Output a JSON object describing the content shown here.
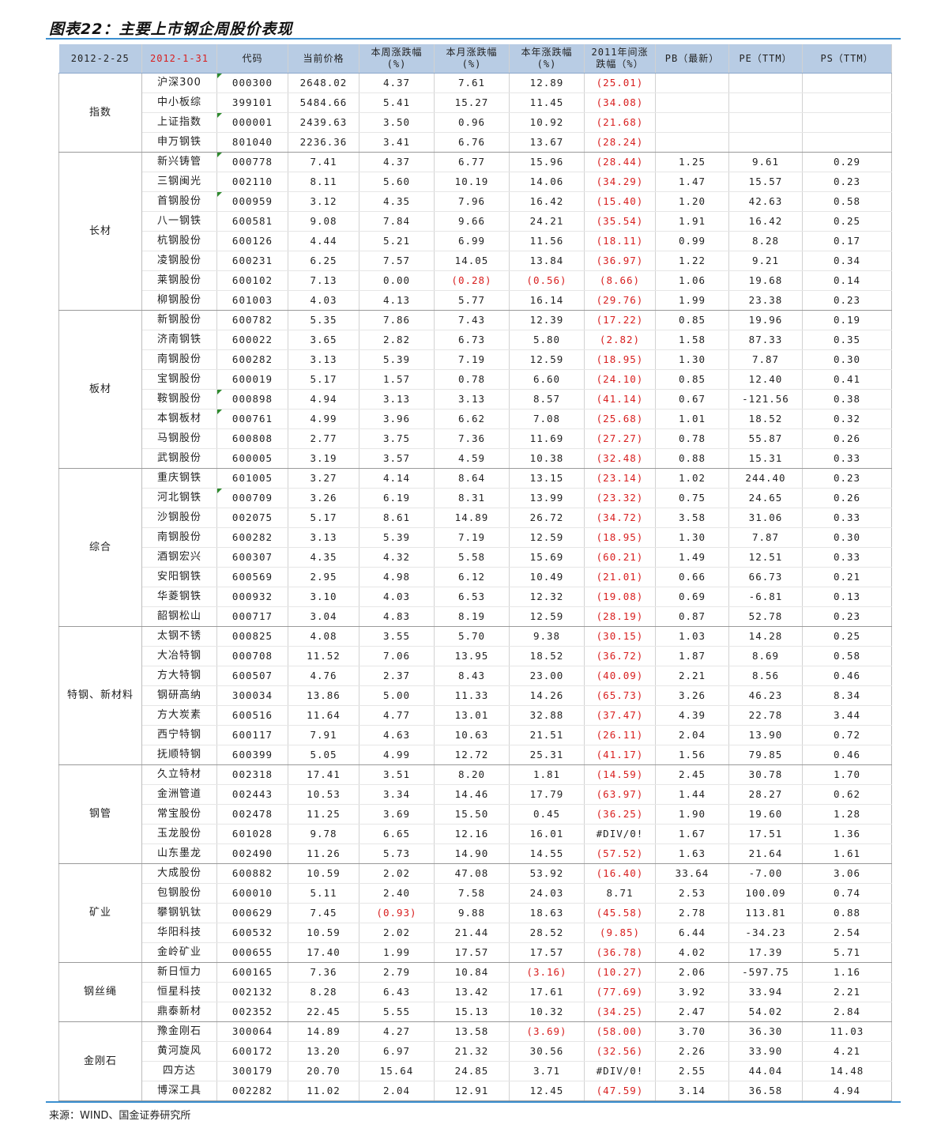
{
  "title": "图表22：主要上市钢企周股价表现",
  "source": "来源：WIND、国金证券研究所",
  "header": {
    "date1": "2012-2-25",
    "date2": "2012-1-31",
    "code": "代码",
    "price": "当前价格",
    "week": "本周涨跌幅\n(%)",
    "month": "本月涨跌幅\n(%)",
    "year": "本年涨跌幅\n(%)",
    "y2011": "2011年间涨\n跌幅（%）",
    "pb": "PB（最新）",
    "pe": "PE（TTM）",
    "ps": "PS（TTM）"
  },
  "groups": [
    {
      "name": "指数",
      "rows": [
        {
          "name": "沪深300",
          "code": "000300",
          "flag": true,
          "price": "2648.02",
          "week": "4.37",
          "month": "7.61",
          "year": "12.89",
          "y2011": "(25.01)",
          "pb": "",
          "pe": "",
          "ps": ""
        },
        {
          "name": "中小板综",
          "code": "399101",
          "flag": false,
          "price": "5484.66",
          "week": "5.41",
          "month": "15.27",
          "year": "11.45",
          "y2011": "(34.08)",
          "pb": "",
          "pe": "",
          "ps": ""
        },
        {
          "name": "上证指数",
          "code": "000001",
          "flag": true,
          "price": "2439.63",
          "week": "3.50",
          "month": "0.96",
          "year": "10.92",
          "y2011": "(21.68)",
          "pb": "",
          "pe": "",
          "ps": ""
        },
        {
          "name": "申万钢铁",
          "code": "801040",
          "flag": false,
          "price": "2236.36",
          "week": "3.41",
          "month": "6.76",
          "year": "13.67",
          "y2011": "(28.24)",
          "pb": "",
          "pe": "",
          "ps": ""
        }
      ]
    },
    {
      "name": "长材",
      "rows": [
        {
          "name": "新兴铸管",
          "code": "000778",
          "flag": true,
          "price": "7.41",
          "week": "4.37",
          "month": "6.77",
          "year": "15.96",
          "y2011": "(28.44)",
          "pb": "1.25",
          "pe": "9.61",
          "ps": "0.29"
        },
        {
          "name": "三钢闽光",
          "code": "002110",
          "flag": false,
          "price": "8.11",
          "week": "5.60",
          "month": "10.19",
          "year": "14.06",
          "y2011": "(34.29)",
          "pb": "1.47",
          "pe": "15.57",
          "ps": "0.23"
        },
        {
          "name": "首钢股份",
          "code": "000959",
          "flag": true,
          "price": "3.12",
          "week": "4.35",
          "month": "7.96",
          "year": "16.42",
          "y2011": "(15.40)",
          "pb": "1.20",
          "pe": "42.63",
          "ps": "0.58"
        },
        {
          "name": "八一钢铁",
          "code": "600581",
          "flag": false,
          "price": "9.08",
          "week": "7.84",
          "month": "9.66",
          "year": "24.21",
          "y2011": "(35.54)",
          "pb": "1.91",
          "pe": "16.42",
          "ps": "0.25"
        },
        {
          "name": "杭钢股份",
          "code": "600126",
          "flag": false,
          "price": "4.44",
          "week": "5.21",
          "month": "6.99",
          "year": "11.56",
          "y2011": "(18.11)",
          "pb": "0.99",
          "pe": "8.28",
          "ps": "0.17"
        },
        {
          "name": "凌钢股份",
          "code": "600231",
          "flag": false,
          "price": "6.25",
          "week": "7.57",
          "month": "14.05",
          "year": "13.84",
          "y2011": "(36.97)",
          "pb": "1.22",
          "pe": "9.21",
          "ps": "0.34"
        },
        {
          "name": "莱钢股份",
          "code": "600102",
          "flag": false,
          "price": "7.13",
          "week": "0.00",
          "month": "(0.28)",
          "year": "(0.56)",
          "y2011": "(8.66)",
          "pb": "1.06",
          "pe": "19.68",
          "ps": "0.14"
        },
        {
          "name": "柳钢股份",
          "code": "601003",
          "flag": false,
          "price": "4.03",
          "week": "4.13",
          "month": "5.77",
          "year": "16.14",
          "y2011": "(29.76)",
          "pb": "1.99",
          "pe": "23.38",
          "ps": "0.23"
        }
      ]
    },
    {
      "name": "板材",
      "rows": [
        {
          "name": "新钢股份",
          "code": "600782",
          "flag": false,
          "price": "5.35",
          "week": "7.86",
          "month": "7.43",
          "year": "12.39",
          "y2011": "(17.22)",
          "pb": "0.85",
          "pe": "19.96",
          "ps": "0.19"
        },
        {
          "name": "济南钢铁",
          "code": "600022",
          "flag": false,
          "price": "3.65",
          "week": "2.82",
          "month": "6.73",
          "year": "5.80",
          "y2011": "(2.82)",
          "pb": "1.58",
          "pe": "87.33",
          "ps": "0.35"
        },
        {
          "name": "南钢股份",
          "code": "600282",
          "flag": false,
          "price": "3.13",
          "week": "5.39",
          "month": "7.19",
          "year": "12.59",
          "y2011": "(18.95)",
          "pb": "1.30",
          "pe": "7.87",
          "ps": "0.30"
        },
        {
          "name": "宝钢股份",
          "code": "600019",
          "flag": false,
          "price": "5.17",
          "week": "1.57",
          "month": "0.78",
          "year": "6.60",
          "y2011": "(24.10)",
          "pb": "0.85",
          "pe": "12.40",
          "ps": "0.41"
        },
        {
          "name": "鞍钢股份",
          "code": "000898",
          "flag": true,
          "price": "4.94",
          "week": "3.13",
          "month": "3.13",
          "year": "8.57",
          "y2011": "(41.14)",
          "pb": "0.67",
          "pe": "-121.56",
          "ps": "0.38"
        },
        {
          "name": "本钢板材",
          "code": "000761",
          "flag": true,
          "price": "4.99",
          "week": "3.96",
          "month": "6.62",
          "year": "7.08",
          "y2011": "(25.68)",
          "pb": "1.01",
          "pe": "18.52",
          "ps": "0.32"
        },
        {
          "name": "马钢股份",
          "code": "600808",
          "flag": false,
          "price": "2.77",
          "week": "3.75",
          "month": "7.36",
          "year": "11.69",
          "y2011": "(27.27)",
          "pb": "0.78",
          "pe": "55.87",
          "ps": "0.26"
        },
        {
          "name": "武钢股份",
          "code": "600005",
          "flag": false,
          "price": "3.19",
          "week": "3.57",
          "month": "4.59",
          "year": "10.38",
          "y2011": "(32.48)",
          "pb": "0.88",
          "pe": "15.31",
          "ps": "0.33"
        }
      ]
    },
    {
      "name": "综合",
      "rows": [
        {
          "name": "重庆钢铁",
          "code": "601005",
          "flag": false,
          "price": "3.27",
          "week": "4.14",
          "month": "8.64",
          "year": "13.15",
          "y2011": "(23.14)",
          "pb": "1.02",
          "pe": "244.40",
          "ps": "0.23"
        },
        {
          "name": "河北钢铁",
          "code": "000709",
          "flag": true,
          "price": "3.26",
          "week": "6.19",
          "month": "8.31",
          "year": "13.99",
          "y2011": "(23.32)",
          "pb": "0.75",
          "pe": "24.65",
          "ps": "0.26"
        },
        {
          "name": "沙钢股份",
          "code": "002075",
          "flag": false,
          "price": "5.17",
          "week": "8.61",
          "month": "14.89",
          "year": "26.72",
          "y2011": "(34.72)",
          "pb": "3.58",
          "pe": "31.06",
          "ps": "0.33"
        },
        {
          "name": "南钢股份",
          "code": "600282",
          "flag": false,
          "price": "3.13",
          "week": "5.39",
          "month": "7.19",
          "year": "12.59",
          "y2011": "(18.95)",
          "pb": "1.30",
          "pe": "7.87",
          "ps": "0.30"
        },
        {
          "name": "酒钢宏兴",
          "code": "600307",
          "flag": false,
          "price": "4.35",
          "week": "4.32",
          "month": "5.58",
          "year": "15.69",
          "y2011": "(60.21)",
          "pb": "1.49",
          "pe": "12.51",
          "ps": "0.33"
        },
        {
          "name": "安阳钢铁",
          "code": "600569",
          "flag": false,
          "price": "2.95",
          "week": "4.98",
          "month": "6.12",
          "year": "10.49",
          "y2011": "(21.01)",
          "pb": "0.66",
          "pe": "66.73",
          "ps": "0.21"
        },
        {
          "name": "华菱钢铁",
          "code": "000932",
          "flag": false,
          "price": "3.10",
          "week": "4.03",
          "month": "6.53",
          "year": "12.32",
          "y2011": "(19.08)",
          "pb": "0.69",
          "pe": "-6.81",
          "ps": "0.13"
        },
        {
          "name": "韶钢松山",
          "code": "000717",
          "flag": false,
          "price": "3.04",
          "week": "4.83",
          "month": "8.19",
          "year": "12.59",
          "y2011": "(28.19)",
          "pb": "0.87",
          "pe": "52.78",
          "ps": "0.23"
        }
      ]
    },
    {
      "name": "特钢、新材料",
      "rows": [
        {
          "name": "太钢不锈",
          "code": "000825",
          "flag": false,
          "price": "4.08",
          "week": "3.55",
          "month": "5.70",
          "year": "9.38",
          "y2011": "(30.15)",
          "pb": "1.03",
          "pe": "14.28",
          "ps": "0.25"
        },
        {
          "name": "大冶特钢",
          "code": "000708",
          "flag": false,
          "price": "11.52",
          "week": "7.06",
          "month": "13.95",
          "year": "18.52",
          "y2011": "(36.72)",
          "pb": "1.87",
          "pe": "8.69",
          "ps": "0.58"
        },
        {
          "name": "方大特钢",
          "code": "600507",
          "flag": false,
          "price": "4.76",
          "week": "2.37",
          "month": "8.43",
          "year": "23.00",
          "y2011": "(40.09)",
          "pb": "2.21",
          "pe": "8.56",
          "ps": "0.46"
        },
        {
          "name": "钢研高纳",
          "code": "300034",
          "flag": false,
          "price": "13.86",
          "week": "5.00",
          "month": "11.33",
          "year": "14.26",
          "y2011": "(65.73)",
          "pb": "3.26",
          "pe": "46.23",
          "ps": "8.34"
        },
        {
          "name": "方大炭素",
          "code": "600516",
          "flag": false,
          "price": "11.64",
          "week": "4.77",
          "month": "13.01",
          "year": "32.88",
          "y2011": "(37.47)",
          "pb": "4.39",
          "pe": "22.78",
          "ps": "3.44"
        },
        {
          "name": "西宁特钢",
          "code": "600117",
          "flag": false,
          "price": "7.91",
          "week": "4.63",
          "month": "10.63",
          "year": "21.51",
          "y2011": "(26.11)",
          "pb": "2.04",
          "pe": "13.90",
          "ps": "0.72"
        },
        {
          "name": "抚顺特钢",
          "code": "600399",
          "flag": false,
          "price": "5.05",
          "week": "4.99",
          "month": "12.72",
          "year": "25.31",
          "y2011": "(41.17)",
          "pb": "1.56",
          "pe": "79.85",
          "ps": "0.46"
        }
      ]
    },
    {
      "name": "钢管",
      "rows": [
        {
          "name": "久立特材",
          "code": "002318",
          "flag": false,
          "price": "17.41",
          "week": "3.51",
          "month": "8.20",
          "year": "1.81",
          "y2011": "(14.59)",
          "pb": "2.45",
          "pe": "30.78",
          "ps": "1.70"
        },
        {
          "name": "金洲管道",
          "code": "002443",
          "flag": false,
          "price": "10.53",
          "week": "3.34",
          "month": "14.46",
          "year": "17.79",
          "y2011": "(63.97)",
          "pb": "1.44",
          "pe": "28.27",
          "ps": "0.62"
        },
        {
          "name": "常宝股份",
          "code": "002478",
          "flag": false,
          "price": "11.25",
          "week": "3.69",
          "month": "15.50",
          "year": "0.45",
          "y2011": "(36.25)",
          "pb": "1.90",
          "pe": "19.60",
          "ps": "1.28"
        },
        {
          "name": "玉龙股份",
          "code": "601028",
          "flag": false,
          "price": "9.78",
          "week": "6.65",
          "month": "12.16",
          "year": "16.01",
          "y2011": "#DIV/0!",
          "pb": "1.67",
          "pe": "17.51",
          "ps": "1.36"
        },
        {
          "name": "山东墨龙",
          "code": "002490",
          "flag": false,
          "price": "11.26",
          "week": "5.73",
          "month": "14.90",
          "year": "14.55",
          "y2011": "(57.52)",
          "pb": "1.63",
          "pe": "21.64",
          "ps": "1.61"
        }
      ]
    },
    {
      "name": "矿业",
      "rows": [
        {
          "name": "大成股份",
          "code": "600882",
          "flag": false,
          "price": "10.59",
          "week": "2.02",
          "month": "47.08",
          "year": "53.92",
          "y2011": "(16.40)",
          "pb": "33.64",
          "pe": "-7.00",
          "ps": "3.06"
        },
        {
          "name": "包钢股份",
          "code": "600010",
          "flag": false,
          "price": "5.11",
          "week": "2.40",
          "month": "7.58",
          "year": "24.03",
          "y2011": "8.71",
          "pb": "2.53",
          "pe": "100.09",
          "ps": "0.74"
        },
        {
          "name": "攀钢钒钛",
          "code": "000629",
          "flag": false,
          "price": "7.45",
          "week": "(0.93)",
          "month": "9.88",
          "year": "18.63",
          "y2011": "(45.58)",
          "pb": "2.78",
          "pe": "113.81",
          "ps": "0.88"
        },
        {
          "name": "华阳科技",
          "code": "600532",
          "flag": false,
          "price": "10.59",
          "week": "2.02",
          "month": "21.44",
          "year": "28.52",
          "y2011": "(9.85)",
          "pb": "6.44",
          "pe": "-34.23",
          "ps": "2.54"
        },
        {
          "name": "金岭矿业",
          "code": "000655",
          "flag": false,
          "price": "17.40",
          "week": "1.99",
          "month": "17.57",
          "year": "17.57",
          "y2011": "(36.78)",
          "pb": "4.02",
          "pe": "17.39",
          "ps": "5.71"
        }
      ]
    },
    {
      "name": "钢丝绳",
      "rows": [
        {
          "name": "新日恒力",
          "code": "600165",
          "flag": false,
          "price": "7.36",
          "week": "2.79",
          "month": "10.84",
          "year": "(3.16)",
          "y2011": "(10.27)",
          "pb": "2.06",
          "pe": "-597.75",
          "ps": "1.16"
        },
        {
          "name": "恒星科技",
          "code": "002132",
          "flag": false,
          "price": "8.28",
          "week": "6.43",
          "month": "13.42",
          "year": "17.61",
          "y2011": "(77.69)",
          "pb": "3.92",
          "pe": "33.94",
          "ps": "2.21"
        },
        {
          "name": "鼎泰新材",
          "code": "002352",
          "flag": false,
          "price": "22.45",
          "week": "5.55",
          "month": "15.13",
          "year": "10.32",
          "y2011": "(34.25)",
          "pb": "2.47",
          "pe": "54.02",
          "ps": "2.84"
        }
      ]
    },
    {
      "name": "金刚石",
      "rows": [
        {
          "name": "豫金刚石",
          "code": "300064",
          "flag": false,
          "price": "14.89",
          "week": "4.27",
          "month": "13.58",
          "year": "(3.69)",
          "y2011": "(58.00)",
          "pb": "3.70",
          "pe": "36.30",
          "ps": "11.03"
        },
        {
          "name": "黄河旋风",
          "code": "600172",
          "flag": false,
          "price": "13.20",
          "week": "6.97",
          "month": "21.32",
          "year": "30.56",
          "y2011": "(32.56)",
          "pb": "2.26",
          "pe": "33.90",
          "ps": "4.21"
        },
        {
          "name": "四方达",
          "code": "300179",
          "flag": false,
          "price": "20.70",
          "week": "15.64",
          "month": "24.85",
          "year": "3.71",
          "y2011": "#DIV/0!",
          "pb": "2.55",
          "pe": "44.04",
          "ps": "14.48"
        },
        {
          "name": "博深工具",
          "code": "002282",
          "flag": false,
          "price": "11.02",
          "week": "2.04",
          "month": "12.91",
          "year": "12.45",
          "y2011": "(47.59)",
          "pb": "3.14",
          "pe": "36.58",
          "ps": "4.94"
        }
      ]
    }
  ],
  "colors": {
    "accent": "#3b8fd0",
    "header_bg": "#b8cce4",
    "negative": "#d81e1e",
    "flag": "#2e8b2e"
  }
}
